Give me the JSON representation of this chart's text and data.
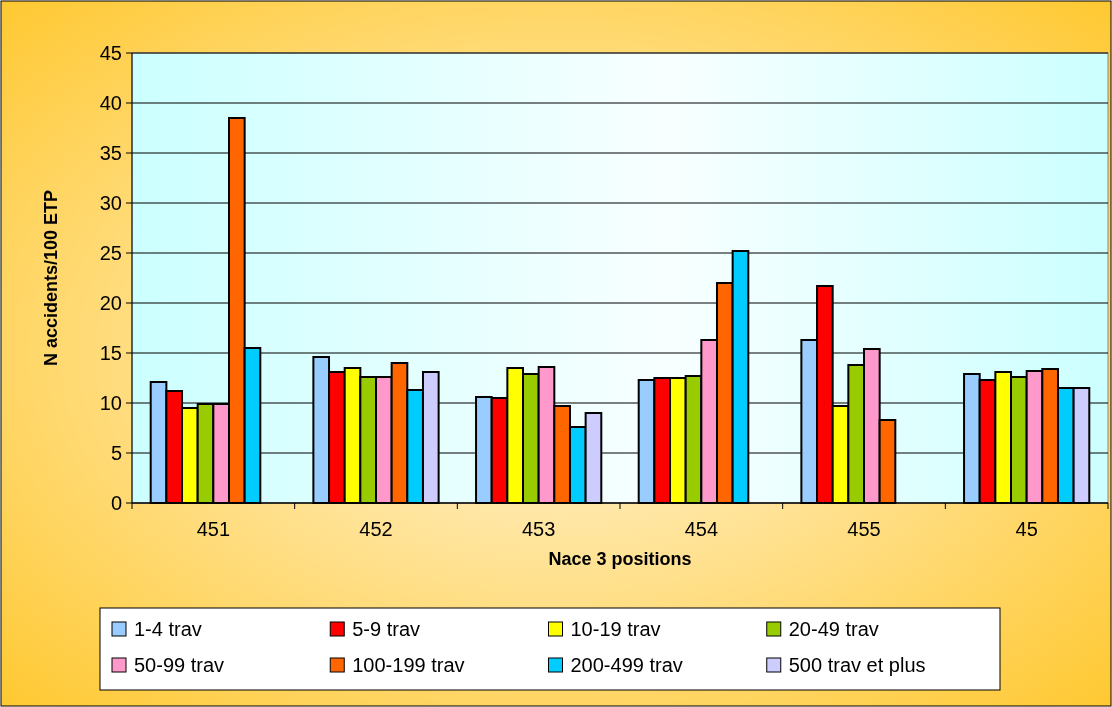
{
  "chart_data": {
    "type": "bar",
    "xlabel": "Nace 3 positions",
    "ylabel": "N accidents/100 ETP",
    "categories": [
      "451",
      "452",
      "453",
      "454",
      "455",
      "45"
    ],
    "ylim": [
      0,
      45
    ],
    "yticks": [
      0,
      5,
      10,
      15,
      20,
      25,
      30,
      35,
      40,
      45
    ],
    "grid": "y",
    "legend": "bottom",
    "series": [
      {
        "name": "1-4 trav",
        "color": "#99ccff",
        "values": [
          12.1,
          14.6,
          10.6,
          12.3,
          16.3,
          12.9
        ]
      },
      {
        "name": "5-9 trav",
        "color": "#ff0000",
        "values": [
          11.2,
          13.1,
          10.5,
          12.5,
          21.7,
          12.3
        ]
      },
      {
        "name": "10-19 trav",
        "color": "#ffff00",
        "values": [
          9.5,
          13.5,
          13.5,
          12.5,
          9.7,
          13.1
        ]
      },
      {
        "name": "20-49 trav",
        "color": "#99cc00",
        "values": [
          9.9,
          12.6,
          12.9,
          12.7,
          13.8,
          12.6
        ]
      },
      {
        "name": "50-99 trav",
        "color": "#ff99cc",
        "values": [
          9.9,
          12.6,
          13.6,
          16.3,
          15.4,
          13.2
        ]
      },
      {
        "name": "100-199 trav",
        "color": "#ff6600",
        "values": [
          38.5,
          14.0,
          9.7,
          22.0,
          8.3,
          13.4
        ]
      },
      {
        "name": "200-499 trav",
        "color": "#00ccff",
        "values": [
          15.5,
          11.3,
          7.6,
          25.2,
          null,
          11.5
        ]
      },
      {
        "name": "500 trav et plus",
        "color": "#ccccff",
        "values": [
          null,
          13.1,
          9.0,
          null,
          null,
          11.5
        ]
      }
    ]
  }
}
